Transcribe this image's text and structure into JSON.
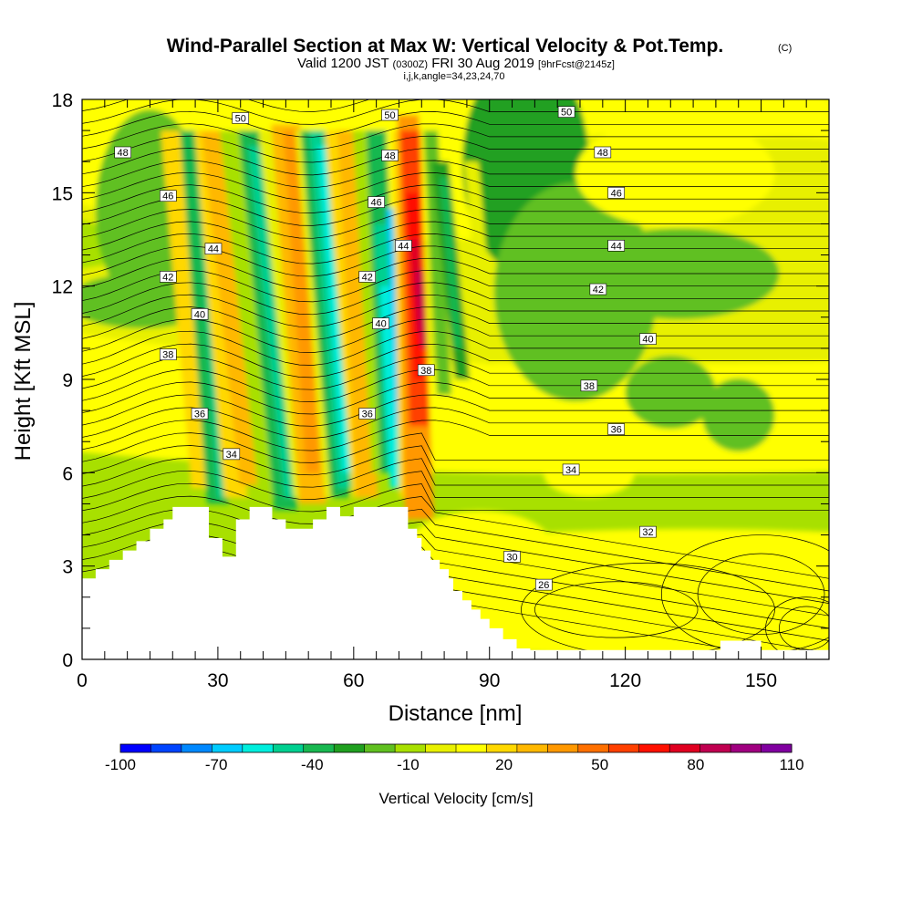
{
  "chart_data": {
    "type": "heatmap",
    "title": "Wind-Parallel Section at Max W: Vertical Velocity & Pot.Temp.",
    "title_mark": "(C)",
    "subtitle_prefix": "Valid 1200 JST",
    "subtitle_utc": "(0300Z)",
    "subtitle_date": "FRI 30 Aug 2019",
    "subtitle_fcst": "[9hrFcst@2145z]",
    "subtitle_indices": "i,j,k,angle=34,23,24,70",
    "xlabel": "Distance [nm]",
    "ylabel": "Height [Kft MSL]",
    "xlim": [
      0,
      165
    ],
    "ylim": [
      0,
      18
    ],
    "x_ticks": [
      0,
      30,
      60,
      90,
      120,
      150
    ],
    "y_ticks": [
      0,
      3,
      6,
      9,
      12,
      15,
      18
    ],
    "colorbar": {
      "label": "Vertical Velocity [cm/s]",
      "tick_labels": [
        "-100",
        "-70",
        "-40",
        "-10",
        "20",
        "50",
        "80",
        "110"
      ],
      "tick_values": [
        -100,
        -70,
        -40,
        -10,
        20,
        50,
        80,
        110
      ],
      "colors": [
        "#0000ff",
        "#0044ff",
        "#0088ff",
        "#00ccff",
        "#00eedd",
        "#00d090",
        "#18b850",
        "#20a020",
        "#60c020",
        "#a8e000",
        "#e8f000",
        "#ffff00",
        "#ffd800",
        "#ffb800",
        "#ff9800",
        "#ff7000",
        "#ff4000",
        "#ff1000",
        "#e00020",
        "#c00050",
        "#a00080",
        "#8000a0"
      ]
    },
    "isentropes_label": "Pot.Temp.",
    "contour_levels": [
      26,
      28,
      30,
      32,
      34,
      36,
      38,
      40,
      42,
      44,
      46,
      48,
      50
    ],
    "contour_labels": [
      {
        "text": "50",
        "x": 35,
        "y": 17.4
      },
      {
        "text": "50",
        "x": 68,
        "y": 17.5
      },
      {
        "text": "50",
        "x": 107,
        "y": 17.6
      },
      {
        "text": "48",
        "x": 9,
        "y": 16.3
      },
      {
        "text": "48",
        "x": 68,
        "y": 16.2
      },
      {
        "text": "48",
        "x": 115,
        "y": 16.3
      },
      {
        "text": "46",
        "x": 19,
        "y": 14.9
      },
      {
        "text": "46",
        "x": 65,
        "y": 14.7
      },
      {
        "text": "46",
        "x": 118,
        "y": 15.0
      },
      {
        "text": "44",
        "x": 29,
        "y": 13.2
      },
      {
        "text": "44",
        "x": 71,
        "y": 13.3
      },
      {
        "text": "44",
        "x": 118,
        "y": 13.3
      },
      {
        "text": "42",
        "x": 19,
        "y": 12.3
      },
      {
        "text": "42",
        "x": 63,
        "y": 12.3
      },
      {
        "text": "42",
        "x": 114,
        "y": 11.9
      },
      {
        "text": "40",
        "x": 26,
        "y": 11.1
      },
      {
        "text": "40",
        "x": 66,
        "y": 10.8
      },
      {
        "text": "40",
        "x": 125,
        "y": 10.3
      },
      {
        "text": "38",
        "x": 19,
        "y": 9.8
      },
      {
        "text": "38",
        "x": 76,
        "y": 9.3
      },
      {
        "text": "38",
        "x": 112,
        "y": 8.8
      },
      {
        "text": "36",
        "x": 26,
        "y": 7.9
      },
      {
        "text": "36",
        "x": 63,
        "y": 7.9
      },
      {
        "text": "36",
        "x": 118,
        "y": 7.4
      },
      {
        "text": "34",
        "x": 33,
        "y": 6.6
      },
      {
        "text": "34",
        "x": 108,
        "y": 6.1
      },
      {
        "text": "32",
        "x": 125,
        "y": 4.1
      },
      {
        "text": "30",
        "x": 95,
        "y": 3.3
      },
      {
        "text": "26",
        "x": 102,
        "y": 2.4
      }
    ]
  }
}
